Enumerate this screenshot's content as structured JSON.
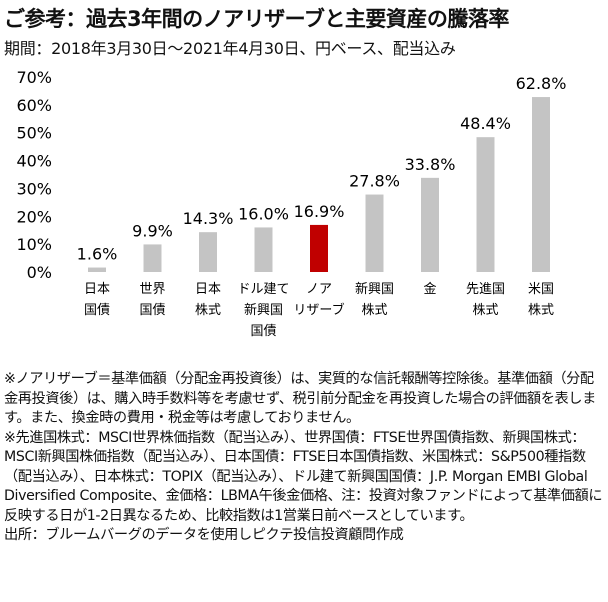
{
  "title": "ご参考：過去3年間のノアリザーブと主要資産の騰落率",
  "subtitle": "期間：2018年3月30日～2021年4月30日、円ベース、配当込み",
  "chart_data": {
    "type": "bar",
    "categories": [
      [
        "日本",
        "国債"
      ],
      [
        "世界",
        "国債"
      ],
      [
        "日本",
        "株式"
      ],
      [
        "ドル建て",
        "新興国",
        "国債"
      ],
      [
        "ノア",
        "リザーブ"
      ],
      [
        "新興国",
        "株式"
      ],
      [
        "金"
      ],
      [
        "先進国",
        "株式"
      ],
      [
        "米国",
        "株式"
      ]
    ],
    "values": [
      1.6,
      9.9,
      14.3,
      16.0,
      16.9,
      27.8,
      33.8,
      48.4,
      62.8
    ],
    "value_labels": [
      "1.6%",
      "9.9%",
      "14.3%",
      "16.0%",
      "16.9%",
      "27.8%",
      "33.8%",
      "48.4%",
      "62.8%"
    ],
    "highlight_index": 4,
    "colors": {
      "default": "#c4c4c4",
      "highlight": "#c00000"
    },
    "y_ticks": [
      "0%",
      "10%",
      "20%",
      "30%",
      "40%",
      "50%",
      "60%",
      "70%"
    ],
    "ylim": [
      0,
      70
    ],
    "grid": false
  },
  "notes": [
    "※ノアリザーブ＝基準価額（分配金再投資後）は、実質的な信託報酬等控除後。基準価額（分配金再投資後）は、購入時手数料等を考慮せず、税引前分配金を再投資した場合の評価額を表します。また、換金時の費用・税金等は考慮しておりません。",
    "※先進国株式：MSCI世界株価指数（配当込み）、世界国債：FTSE世界国債指数、新興国株式：MSCI新興国株価指数（配当込み）、日本国債：FTSE日本国債指数、米国株式：S&P500種指数（配当込み）、日本株式：TOPIX（配当込み）、ドル建て新興国国債：J.P. Morgan EMBI Global Diversified Composite、金価格：LBMA午後金価格、注：投資対象ファンドによって基準価額に反映する日が1-2日異なるため、比較指数は1営業日前ベースとしています。",
    "出所：ブルームバーグのデータを使用しピクテ投信投資顧問作成"
  ]
}
